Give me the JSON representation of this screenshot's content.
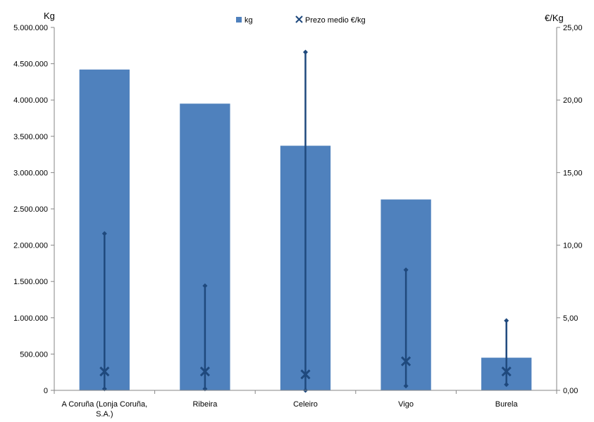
{
  "chart_data": {
    "type": "bar",
    "categories": [
      "A Coruña (Lonja Coruña, S.A.)",
      "Ribeira",
      "Celeiro",
      "Vigo",
      "Burela"
    ],
    "category_lines": [
      [
        "A Coruña (Lonja Coruña,",
        "S.A.)"
      ],
      [
        "Ribeira"
      ],
      [
        "Celeiro"
      ],
      [
        "Vigo"
      ],
      [
        "Burela"
      ]
    ],
    "series": [
      {
        "name": "kg",
        "kind": "bar",
        "axis": "left",
        "color": "#4f81bd",
        "values": [
          4420000,
          3950000,
          3370000,
          2630000,
          450000
        ]
      },
      {
        "name": "Prezo medio €/kg",
        "kind": "marker-x",
        "axis": "right",
        "color": "#1f497d",
        "values": [
          1.3,
          1.3,
          1.1,
          2.0,
          1.3
        ],
        "min": [
          0.1,
          0.1,
          0.0,
          0.3,
          0.4
        ],
        "max": [
          10.8,
          7.2,
          23.3,
          8.3,
          4.8
        ]
      }
    ],
    "y_left": {
      "label": "Kg",
      "min": 0,
      "max": 5000000,
      "ticks": [
        "0",
        "500.000",
        "1.000.000",
        "1.500.000",
        "2.000.000",
        "2.500.000",
        "3.000.000",
        "3.500.000",
        "4.000.000",
        "4.500.000",
        "5.000.000"
      ]
    },
    "y_right": {
      "label": "€/Kg",
      "min": 0,
      "max": 25,
      "ticks": [
        "0,00",
        "5,00",
        "10,00",
        "15,00",
        "20,00",
        "25,00"
      ]
    },
    "legend": {
      "position": "top-center",
      "items": [
        "kg",
        "Prezo medio €/kg"
      ]
    },
    "grid": false
  }
}
